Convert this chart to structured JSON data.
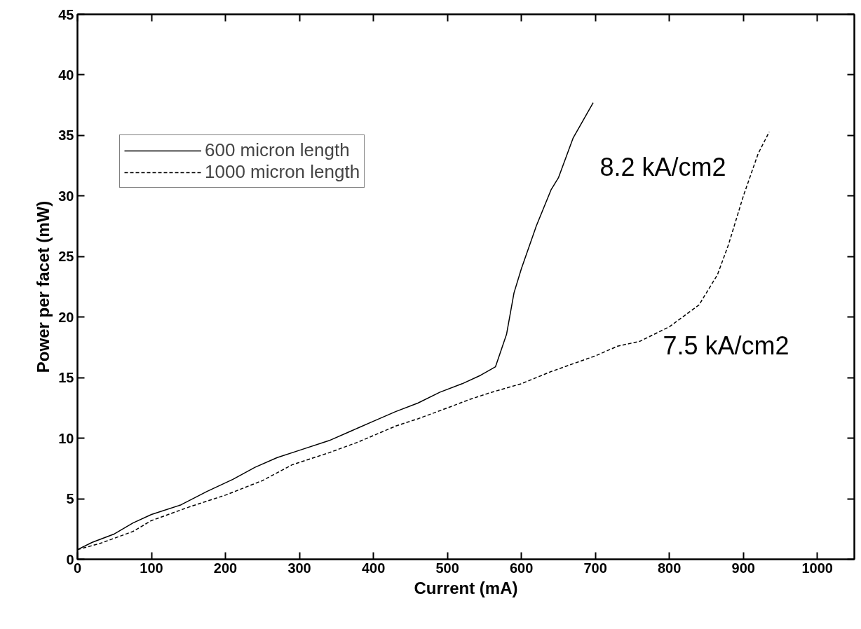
{
  "chart_data": {
    "type": "line",
    "xlabel": "Current (mA)",
    "ylabel": "Power per facet (mW)",
    "xlim": [
      0,
      1050
    ],
    "ylim": [
      0,
      45
    ],
    "xticks": [
      0,
      100,
      200,
      300,
      400,
      500,
      600,
      700,
      800,
      900,
      1000
    ],
    "yticks": [
      0,
      5,
      10,
      15,
      20,
      25,
      30,
      35,
      40,
      45
    ],
    "grid": false,
    "legend": "top left",
    "marker": "none",
    "annotations": [
      "8.2 kA/cm2",
      "7.5 kA/cm2"
    ],
    "series": [
      {
        "name": "600 micron length",
        "color": "#000000",
        "line_style": "solid",
        "x": [
          0,
          20,
          50,
          75,
          100,
          140,
          175,
          210,
          240,
          270,
          300,
          340,
          370,
          400,
          430,
          460,
          490,
          520,
          545,
          565,
          580,
          590,
          600,
          620,
          640,
          650,
          670,
          697
        ],
        "values": [
          0.8,
          1.4,
          2.1,
          3.0,
          3.7,
          4.5,
          5.6,
          6.6,
          7.6,
          8.4,
          9.0,
          9.8,
          10.6,
          11.4,
          12.2,
          12.9,
          13.8,
          14.5,
          15.2,
          15.9,
          18.6,
          22,
          24,
          27.5,
          30.5,
          31.5,
          34.8,
          37.7
        ]
      },
      {
        "name": "1000 micron length",
        "color": "#000000",
        "line_style": "dashed",
        "x": [
          0,
          30,
          75,
          100,
          150,
          200,
          250,
          290,
          340,
          380,
          430,
          460,
          500,
          530,
          560,
          600,
          640,
          700,
          730,
          760,
          800,
          840,
          865,
          880,
          900,
          920,
          935
        ],
        "values": [
          0.8,
          1.3,
          2.3,
          3.2,
          4.3,
          5.3,
          6.5,
          7.8,
          8.8,
          9.7,
          11,
          11.6,
          12.5,
          13.2,
          13.8,
          14.5,
          15.5,
          16.8,
          17.6,
          18,
          19.2,
          21,
          23.5,
          26,
          30,
          33.5,
          35.3
        ]
      }
    ]
  }
}
